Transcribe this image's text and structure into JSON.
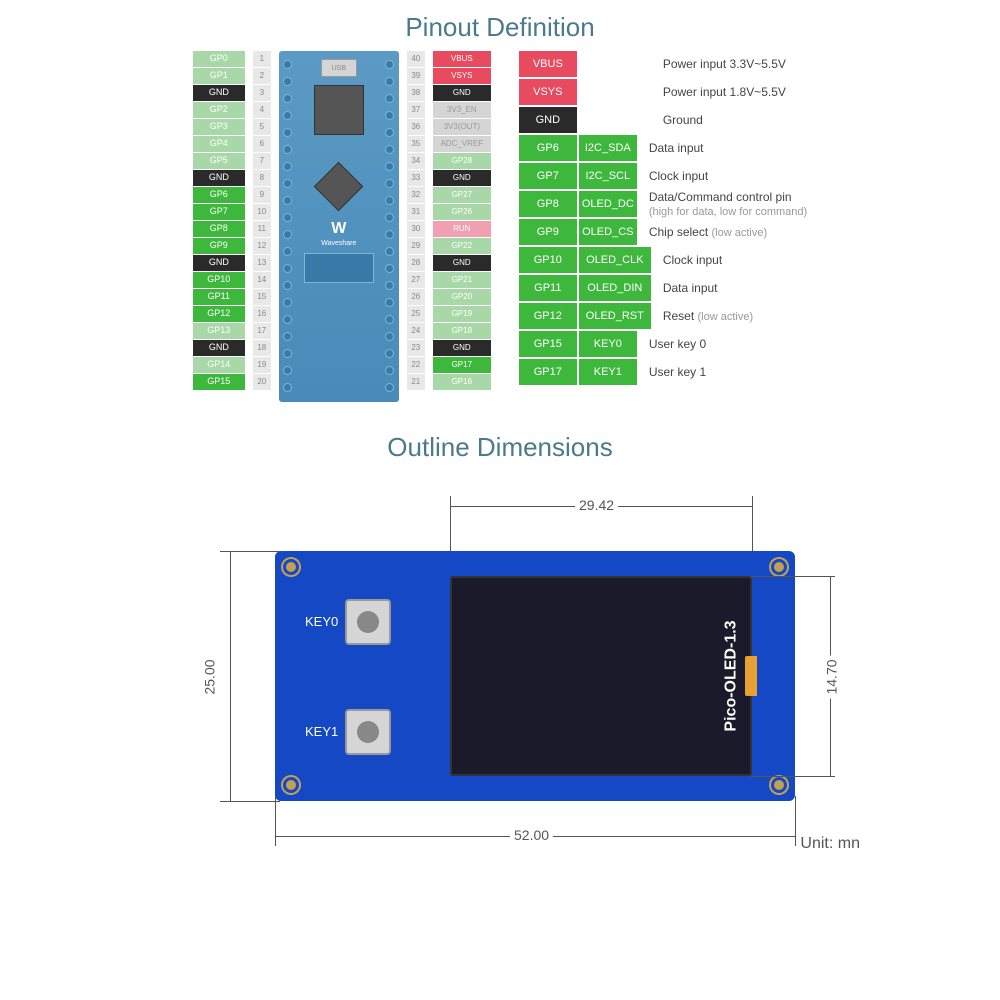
{
  "titles": {
    "pinout": "Pinout Definition",
    "dimensions": "Outline Dimensions"
  },
  "leftPins": [
    {
      "label": "GP0",
      "cls": "gp",
      "num": "1"
    },
    {
      "label": "GP1",
      "cls": "gp",
      "num": "2"
    },
    {
      "label": "GND",
      "cls": "gnd",
      "num": "3"
    },
    {
      "label": "GP2",
      "cls": "gp",
      "num": "4"
    },
    {
      "label": "GP3",
      "cls": "gp",
      "num": "5"
    },
    {
      "label": "GP4",
      "cls": "gp",
      "num": "6"
    },
    {
      "label": "GP5",
      "cls": "gp",
      "num": "7"
    },
    {
      "label": "GND",
      "cls": "gnd",
      "num": "8"
    },
    {
      "label": "GP6",
      "cls": "gpH",
      "num": "9"
    },
    {
      "label": "GP7",
      "cls": "gpH",
      "num": "10"
    },
    {
      "label": "GP8",
      "cls": "gpH",
      "num": "11"
    },
    {
      "label": "GP9",
      "cls": "gpH",
      "num": "12"
    },
    {
      "label": "GND",
      "cls": "gnd",
      "num": "13"
    },
    {
      "label": "GP10",
      "cls": "gpH",
      "num": "14"
    },
    {
      "label": "GP11",
      "cls": "gpH",
      "num": "15"
    },
    {
      "label": "GP12",
      "cls": "gpH",
      "num": "16"
    },
    {
      "label": "GP13",
      "cls": "gp",
      "num": "17"
    },
    {
      "label": "GND",
      "cls": "gnd",
      "num": "18"
    },
    {
      "label": "GP14",
      "cls": "gp",
      "num": "19"
    },
    {
      "label": "GP15",
      "cls": "gpH",
      "num": "20"
    }
  ],
  "rightPins": [
    {
      "num": "40",
      "label": "VBUS",
      "cls": "red"
    },
    {
      "num": "39",
      "label": "VSYS",
      "cls": "red"
    },
    {
      "num": "38",
      "label": "GND",
      "cls": "blk"
    },
    {
      "num": "37",
      "label": "3V3_EN",
      "cls": "grey"
    },
    {
      "num": "36",
      "label": "3V3(OUT)",
      "cls": "grey"
    },
    {
      "num": "35",
      "label": "ADC_VREF",
      "cls": "grey"
    },
    {
      "num": "34",
      "label": "GP28",
      "cls": "gpA"
    },
    {
      "num": "33",
      "label": "GND",
      "cls": "blk"
    },
    {
      "num": "32",
      "label": "GP27",
      "cls": "gpA"
    },
    {
      "num": "31",
      "label": "GP26",
      "cls": "gpA"
    },
    {
      "num": "30",
      "label": "RUN",
      "cls": "run"
    },
    {
      "num": "29",
      "label": "GP22",
      "cls": "gpA"
    },
    {
      "num": "28",
      "label": "GND",
      "cls": "blk"
    },
    {
      "num": "27",
      "label": "GP21",
      "cls": "gpA"
    },
    {
      "num": "26",
      "label": "GP20",
      "cls": "gpA"
    },
    {
      "num": "25",
      "label": "GP19",
      "cls": "gpA"
    },
    {
      "num": "24",
      "label": "GP18",
      "cls": "gpA"
    },
    {
      "num": "23",
      "label": "GND",
      "cls": "blk"
    },
    {
      "num": "22",
      "label": "GP17",
      "cls": "gpH"
    },
    {
      "num": "21",
      "label": "GP16",
      "cls": "gpA"
    }
  ],
  "legend": [
    {
      "tags": [
        {
          "t": "VBUS",
          "c": "red"
        }
      ],
      "desc": "Power input 3.3V~5.5V"
    },
    {
      "tags": [
        {
          "t": "VSYS",
          "c": "red"
        }
      ],
      "desc": "Power input 1.8V~5.5V"
    },
    {
      "tags": [
        {
          "t": "GND",
          "c": "blk"
        }
      ],
      "desc": "Ground"
    },
    {
      "tags": [
        {
          "t": "GP6",
          "c": "grn"
        },
        {
          "t": "I2C_SDA",
          "c": "grn"
        }
      ],
      "desc": "Data input"
    },
    {
      "tags": [
        {
          "t": "GP7",
          "c": "grn"
        },
        {
          "t": "I2C_SCL",
          "c": "grn"
        }
      ],
      "desc": "Clock input"
    },
    {
      "tags": [
        {
          "t": "GP8",
          "c": "grn"
        },
        {
          "t": "OLED_DC",
          "c": "grn"
        }
      ],
      "desc": "Data/Command control pin",
      "sub": "(high for data, low for command)"
    },
    {
      "tags": [
        {
          "t": "GP9",
          "c": "grn"
        },
        {
          "t": "OLED_CS",
          "c": "grn"
        }
      ],
      "desc": "Chip select ",
      "sub": "(low active)"
    },
    {
      "tags": [
        {
          "t": "GP10",
          "c": "grn"
        },
        {
          "t": "OLED_CLK",
          "c": "grn"
        }
      ],
      "desc": "Clock input"
    },
    {
      "tags": [
        {
          "t": "GP11",
          "c": "grn"
        },
        {
          "t": "OLED_DIN",
          "c": "grn"
        }
      ],
      "desc": "Data input"
    },
    {
      "tags": [
        {
          "t": "GP12",
          "c": "grn"
        },
        {
          "t": "OLED_RST",
          "c": "grn"
        }
      ],
      "desc": "Reset ",
      "sub": "(low active)"
    },
    {
      "tags": [
        {
          "t": "GP15",
          "c": "grn"
        },
        {
          "t": "KEY0",
          "c": "grn"
        }
      ],
      "desc": "User key 0"
    },
    {
      "tags": [
        {
          "t": "GP17",
          "c": "grn"
        },
        {
          "t": "KEY1",
          "c": "grn"
        }
      ],
      "desc": "User key 1"
    }
  ],
  "board": {
    "usb": "USB",
    "logo": "W",
    "brand": "Waveshare"
  },
  "dims": {
    "width": "52.00",
    "height": "25.00",
    "screenW": "29.42",
    "screenH": "14.70",
    "product": "Pico-OLED-1.3",
    "key0": "KEY0",
    "key1": "KEY1",
    "unit": "Unit: mn"
  },
  "colors": {
    "gpLight": "#a8d8a8",
    "gpDark": "#3db83d",
    "gnd": "#2a2a2a",
    "red": "#e84a5f",
    "boardBlue": "#1548c4",
    "picoBlue": "#4a8ab8",
    "titleColor": "#4a7a8c",
    "dimColor": "#555555"
  }
}
